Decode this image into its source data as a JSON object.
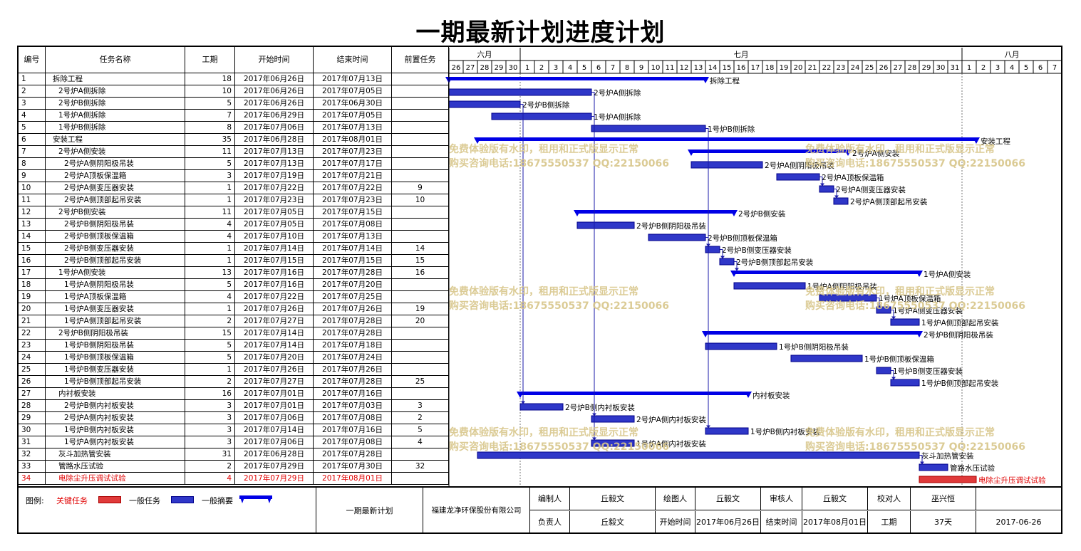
{
  "title": "一期最新计划进度计划",
  "columns": {
    "id": "编号",
    "name": "任务名称",
    "duration": "工期",
    "start": "开始时间",
    "end": "结束时间",
    "pred": "前置任务"
  },
  "months": [
    "六月",
    "七月",
    "八月"
  ],
  "timeline_days": [
    "26",
    "27",
    "28",
    "29",
    "30",
    "1",
    "2",
    "3",
    "4",
    "5",
    "6",
    "7",
    "8",
    "9",
    "10",
    "11",
    "12",
    "13",
    "14",
    "15",
    "16",
    "17",
    "18",
    "19",
    "20",
    "21",
    "22",
    "23",
    "24",
    "25",
    "26",
    "27",
    "28",
    "29",
    "30",
    "31",
    "1",
    "2",
    "3",
    "4",
    "5",
    "6",
    "7"
  ],
  "chart_data": {
    "type": "gantt",
    "tasks": [
      {
        "id": "1",
        "name": "拆除工程",
        "level": 0,
        "duration": 18,
        "start": "2017年06月26日",
        "end": "2017年07月13日",
        "pred": "",
        "kind": "summary",
        "label": "拆除工程"
      },
      {
        "id": "2",
        "name": "2号炉A侧拆除",
        "level": 1,
        "duration": 10,
        "start": "2017年06月26日",
        "end": "2017年07月05日",
        "pred": "",
        "kind": "task",
        "label": "2号炉A侧拆除"
      },
      {
        "id": "3",
        "name": "2号炉B侧拆除",
        "level": 1,
        "duration": 5,
        "start": "2017年06月26日",
        "end": "2017年06月30日",
        "pred": "",
        "kind": "task",
        "label": "2号炉B侧拆除"
      },
      {
        "id": "4",
        "name": "1号炉A侧拆除",
        "level": 1,
        "duration": 7,
        "start": "2017年06月29日",
        "end": "2017年07月05日",
        "pred": "",
        "kind": "task",
        "label": "1号炉A侧拆除"
      },
      {
        "id": "5",
        "name": "1号炉B侧拆除",
        "level": 1,
        "duration": 8,
        "start": "2017年07月06日",
        "end": "2017年07月13日",
        "pred": "",
        "kind": "task",
        "label": "1号炉B侧拆除"
      },
      {
        "id": "6",
        "name": "安装工程",
        "level": 0,
        "duration": 35,
        "start": "2017年06月28日",
        "end": "2017年08月01日",
        "pred": "",
        "kind": "summary",
        "label": "安装工程"
      },
      {
        "id": "7",
        "name": "2号炉A侧安装",
        "level": 1,
        "duration": 11,
        "start": "2017年07月13日",
        "end": "2017年07月23日",
        "pred": "",
        "kind": "summary",
        "label": "2号炉A侧安装"
      },
      {
        "id": "8",
        "name": "2号炉A侧阴阳极吊装",
        "level": 2,
        "duration": 5,
        "start": "2017年07月13日",
        "end": "2017年07月17日",
        "pred": "",
        "kind": "task",
        "label": "2号炉A侧阴阳极吊装"
      },
      {
        "id": "9",
        "name": "2号炉A顶板保温箱",
        "level": 2,
        "duration": 3,
        "start": "2017年07月19日",
        "end": "2017年07月21日",
        "pred": "",
        "kind": "task",
        "label": "2号炉A顶板保温箱"
      },
      {
        "id": "10",
        "name": "2号炉A侧变压器安装",
        "level": 2,
        "duration": 1,
        "start": "2017年07月22日",
        "end": "2017年07月22日",
        "pred": "9",
        "kind": "task",
        "label": "2号炉A侧变压器安装"
      },
      {
        "id": "11",
        "name": "2号炉A侧顶部起吊安装",
        "level": 2,
        "duration": 1,
        "start": "2017年07月23日",
        "end": "2017年07月23日",
        "pred": "10",
        "kind": "task",
        "label": "2号炉A侧顶部起吊安装"
      },
      {
        "id": "12",
        "name": "2号炉B侧安装",
        "level": 1,
        "duration": 11,
        "start": "2017年07月05日",
        "end": "2017年07月15日",
        "pred": "",
        "kind": "summary",
        "label": "2号炉B侧安装"
      },
      {
        "id": "13",
        "name": "2号炉B侧阴阳极吊装",
        "level": 2,
        "duration": 4,
        "start": "2017年07月05日",
        "end": "2017年07月08日",
        "pred": "",
        "kind": "task",
        "label": "2号炉B侧阴阳极吊装"
      },
      {
        "id": "14",
        "name": "2号炉B侧顶板保温箱",
        "level": 2,
        "duration": 4,
        "start": "2017年07月10日",
        "end": "2017年07月13日",
        "pred": "",
        "kind": "task",
        "label": "2号炉B侧顶板保温箱"
      },
      {
        "id": "15",
        "name": "2号炉B侧变压器安装",
        "level": 2,
        "duration": 1,
        "start": "2017年07月14日",
        "end": "2017年07月14日",
        "pred": "14",
        "kind": "task",
        "label": "2号炉B侧变压器安装"
      },
      {
        "id": "16",
        "name": "2号炉B侧顶部起吊安装",
        "level": 2,
        "duration": 1,
        "start": "2017年07月15日",
        "end": "2017年07月15日",
        "pred": "15",
        "kind": "task",
        "label": "2号炉B侧顶部起吊安装"
      },
      {
        "id": "17",
        "name": "1号炉A侧安装",
        "level": 1,
        "duration": 13,
        "start": "2017年07月16日",
        "end": "2017年07月28日",
        "pred": "16",
        "kind": "summary",
        "label": "1号炉A侧安装"
      },
      {
        "id": "18",
        "name": "1号炉A侧阴阳极吊装",
        "level": 2,
        "duration": 5,
        "start": "2017年07月16日",
        "end": "2017年07月20日",
        "pred": "",
        "kind": "task",
        "label": "1号炉A侧阴阳极吊装"
      },
      {
        "id": "19",
        "name": "1号炉A顶板保温箱",
        "level": 2,
        "duration": 4,
        "start": "2017年07月22日",
        "end": "2017年07月25日",
        "pred": "",
        "kind": "task",
        "label": "1号炉A顶板保温箱"
      },
      {
        "id": "20",
        "name": "1号炉A侧变压器安装",
        "level": 2,
        "duration": 1,
        "start": "2017年07月26日",
        "end": "2017年07月26日",
        "pred": "19",
        "kind": "task",
        "label": "1号炉A侧变压器安装"
      },
      {
        "id": "21",
        "name": "1号炉A侧顶部起吊安装",
        "level": 2,
        "duration": 2,
        "start": "2017年07月27日",
        "end": "2017年07月28日",
        "pred": "20",
        "kind": "task",
        "label": "1号炉A侧顶部起吊安装"
      },
      {
        "id": "22",
        "name": "2号炉B侧阴阳极吊装",
        "level": 1,
        "duration": 15,
        "start": "2017年07月14日",
        "end": "2017年07月28日",
        "pred": "",
        "kind": "summary",
        "label": "2号炉B侧阴阳极吊装"
      },
      {
        "id": "23",
        "name": "1号炉B侧阴阳极吊装",
        "level": 2,
        "duration": 5,
        "start": "2017年07月14日",
        "end": "2017年07月18日",
        "pred": "",
        "kind": "task",
        "label": "1号炉B侧阴阳极吊装"
      },
      {
        "id": "24",
        "name": "1号炉B侧顶板保温箱",
        "level": 2,
        "duration": 5,
        "start": "2017年07月20日",
        "end": "2017年07月24日",
        "pred": "",
        "kind": "task",
        "label": "1号炉B侧顶板保温箱"
      },
      {
        "id": "25",
        "name": "1号炉B侧变压器安装",
        "level": 2,
        "duration": 1,
        "start": "2017年07月26日",
        "end": "2017年07月26日",
        "pred": "",
        "kind": "task",
        "label": "1号炉B侧变压器安装"
      },
      {
        "id": "26",
        "name": "1号炉B侧顶部起吊安装",
        "level": 2,
        "duration": 2,
        "start": "2017年07月27日",
        "end": "2017年07月28日",
        "pred": "25",
        "kind": "task",
        "label": "1号炉B侧顶部起吊安装"
      },
      {
        "id": "27",
        "name": "内衬板安装",
        "level": 1,
        "duration": 16,
        "start": "2017年07月01日",
        "end": "2017年07月16日",
        "pred": "",
        "kind": "summary",
        "label": "内衬板安装"
      },
      {
        "id": "28",
        "name": "2号炉B侧内衬板安装",
        "level": 2,
        "duration": 3,
        "start": "2017年07月01日",
        "end": "2017年07月03日",
        "pred": "3",
        "kind": "task",
        "label": "2号炉B侧内衬板安装"
      },
      {
        "id": "29",
        "name": "2号炉A侧内衬板安装",
        "level": 2,
        "duration": 3,
        "start": "2017年07月06日",
        "end": "2017年07月08日",
        "pred": "2",
        "kind": "task",
        "label": "2号炉A侧内衬板安装"
      },
      {
        "id": "30",
        "name": "1号炉B侧内衬板安装",
        "level": 2,
        "duration": 3,
        "start": "2017年07月14日",
        "end": "2017年07月16日",
        "pred": "5",
        "kind": "task",
        "label": "1号炉B侧内衬板安装"
      },
      {
        "id": "31",
        "name": "1号炉A侧内衬板安装",
        "level": 2,
        "duration": 3,
        "start": "2017年07月06日",
        "end": "2017年07月08日",
        "pred": "4",
        "kind": "task",
        "label": "1号炉A侧内衬板安装"
      },
      {
        "id": "32",
        "name": "灰斗加热管安装",
        "level": 1,
        "duration": 31,
        "start": "2017年06月28日",
        "end": "2017年07月28日",
        "pred": "",
        "kind": "task",
        "label": "灰斗加热管安装"
      },
      {
        "id": "33",
        "name": "管路水压试验",
        "level": 1,
        "duration": 2,
        "start": "2017年07月29日",
        "end": "2017年07月30日",
        "pred": "32",
        "kind": "task",
        "label": "管路水压试验"
      },
      {
        "id": "34",
        "name": "电除尘升压调试试验",
        "level": 1,
        "duration": 4,
        "start": "2017年07月29日",
        "end": "2017年08月01日",
        "pred": "",
        "kind": "critical",
        "label": "电除尘升压调试试验"
      }
    ]
  },
  "watermark": {
    "line1": "免费体验版有水印，租用和正式版显示正常",
    "line2": "购买咨询电话:18675550537 QQ:22150066"
  },
  "legend": {
    "label": "图例:",
    "critical": "关键任务",
    "normal": "一般任务",
    "summary": "一般摘要"
  },
  "footer": {
    "project": "一期最新计划",
    "company": "福建龙净环保股份有限公司",
    "editor_label": "编制人",
    "editor": "丘毅文",
    "drawer_label": "绘图人",
    "drawer": "丘毅文",
    "reviewer_label": "审核人",
    "reviewer": "丘毅文",
    "checker_label": "校对人",
    "checker": "巫兴恒",
    "owner_label": "负责人",
    "owner": "丘毅文",
    "start_label": "开始时间",
    "start": "2017年06月26日",
    "end_label": "结束时间",
    "end": "2017年08月01日",
    "duration_label": "工期",
    "duration": "37天",
    "date": "2017-06-26"
  },
  "colors": {
    "bar": "#2f37c8",
    "summary": "#0000e6",
    "critical": "#e03a3a",
    "critical_text": "#e00000",
    "border": "#000000"
  }
}
